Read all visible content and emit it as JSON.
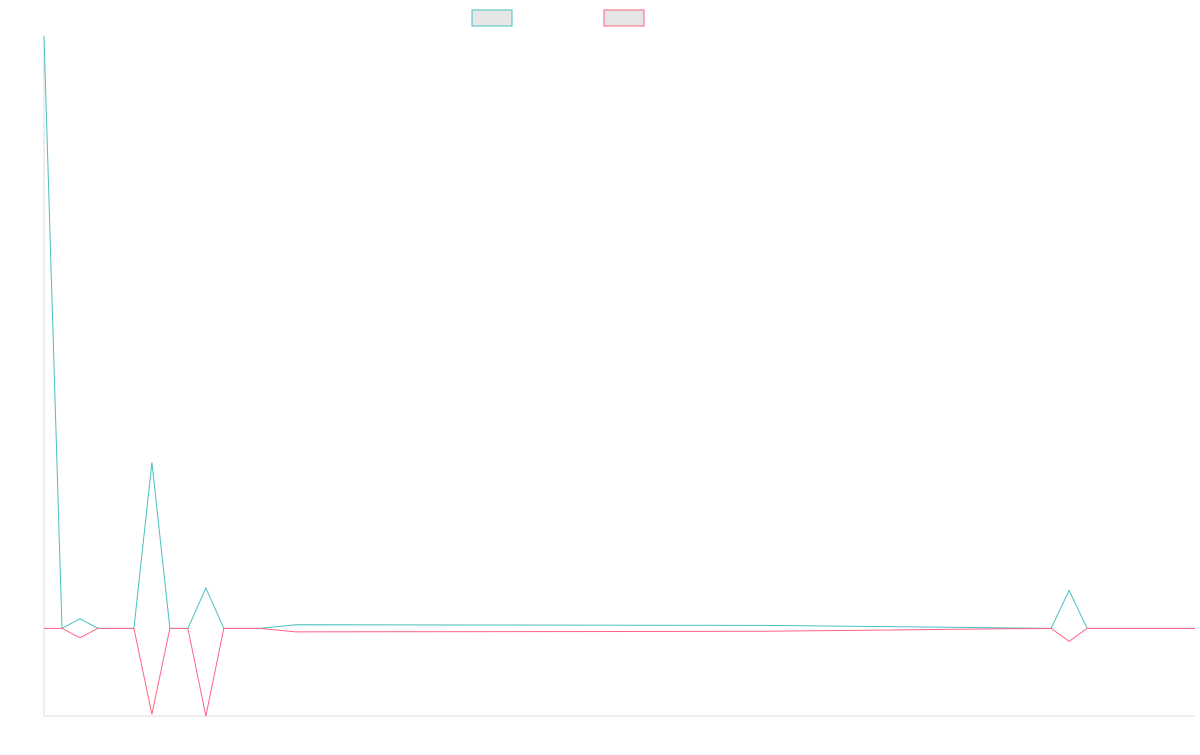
{
  "chart_data": {
    "type": "line",
    "title": "",
    "xlabel": "",
    "ylabel": "",
    "grid": false,
    "legend_position": "top-center",
    "x": [
      0,
      0.5,
      1,
      1.5,
      2,
      2.5,
      3,
      3.5,
      4,
      4.5,
      5,
      5.5,
      6,
      7,
      20,
      28,
      28.5,
      29,
      32
    ],
    "ylim": [
      -1.48,
      10
    ],
    "series": [
      {
        "key": "series_a",
        "color": "#4bc0c0",
        "legend_fill": "#e6e6e6",
        "values": [
          10,
          0,
          0.16,
          0,
          0,
          0,
          2.8,
          0,
          0,
          0.68,
          0,
          0,
          0,
          0.06,
          0.05,
          0,
          0.64,
          0,
          0
        ]
      },
      {
        "key": "series_b",
        "color": "#ff6384",
        "legend_fill": "#e6e6e6",
        "values": [
          0,
          0,
          -0.16,
          0,
          0,
          0,
          -1.45,
          0,
          0,
          -1.48,
          0,
          0,
          0,
          -0.06,
          -0.05,
          0,
          -0.22,
          0,
          0
        ]
      }
    ]
  }
}
